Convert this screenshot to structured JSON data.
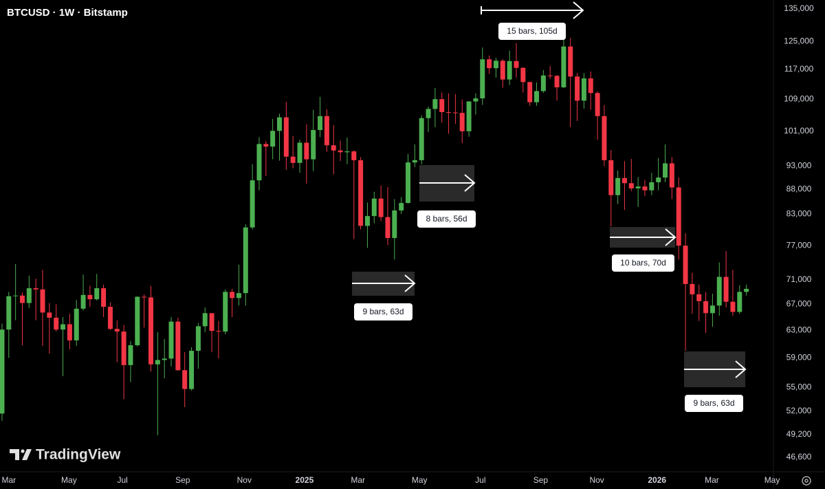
{
  "chart_data": {
    "type": "candlestick",
    "title": "BTCUSD · 1W · Bitstamp",
    "watermark": "TradingView",
    "up_color": "#4caf50",
    "down_color": "#f23645",
    "log_scale": true,
    "grid": false,
    "ylim": [
      45100,
      137900
    ],
    "yticks": [
      {
        "value": 135000,
        "label": "135,000"
      },
      {
        "value": 125000,
        "label": "125,000"
      },
      {
        "value": 117000,
        "label": "117,000"
      },
      {
        "value": 109000,
        "label": "109,000"
      },
      {
        "value": 101000,
        "label": "101,000"
      },
      {
        "value": 93000,
        "label": "93,000"
      },
      {
        "value": 88000,
        "label": "88,000"
      },
      {
        "value": 83000,
        "label": "83,000"
      },
      {
        "value": 77000,
        "label": "77,000"
      },
      {
        "value": 71000,
        "label": "71,000"
      },
      {
        "value": 67000,
        "label": "67,000"
      },
      {
        "value": 63000,
        "label": "63,000"
      },
      {
        "value": 59000,
        "label": "59,000"
      },
      {
        "value": 55000,
        "label": "55,000"
      },
      {
        "value": 52000,
        "label": "52,000"
      },
      {
        "value": 49200,
        "label": "49,200"
      },
      {
        "value": 46600,
        "label": "46,600"
      }
    ],
    "xlim": [
      -0.3,
      114.0
    ],
    "xticks": [
      {
        "value": 1.0,
        "label": "Mar"
      },
      {
        "value": 9.9,
        "label": "May"
      },
      {
        "value": 17.8,
        "label": "Jul"
      },
      {
        "value": 26.7,
        "label": "Sep"
      },
      {
        "value": 35.8,
        "label": "Nov"
      },
      {
        "value": 44.7,
        "label": "2025"
      },
      {
        "value": 52.6,
        "label": "Mar"
      },
      {
        "value": 61.7,
        "label": "May"
      },
      {
        "value": 70.7,
        "label": "Jul"
      },
      {
        "value": 79.6,
        "label": "Sep"
      },
      {
        "value": 87.9,
        "label": "Nov"
      },
      {
        "value": 96.8,
        "label": "2026"
      },
      {
        "value": 104.9,
        "label": "Mar"
      },
      {
        "value": 113.8,
        "label": "May"
      }
    ],
    "open": [
      51700,
      63100,
      68300,
      68400,
      67200,
      69600,
      69400,
      65700,
      64900,
      63100,
      63900,
      61500,
      66300,
      68500,
      67800,
      69600,
      66600,
      63200,
      62800,
      58000,
      60800,
      68200,
      68100,
      58100,
      58700,
      58900,
      64300,
      57300,
      54800,
      60000,
      63600,
      65600,
      62900,
      62800,
      69000,
      68000,
      68800,
      80400,
      89900,
      98000,
      97400,
      101100,
      104400,
      95100,
      93700,
      98300,
      94500,
      101300,
      104700,
      97700,
      96500,
      96100,
      96300,
      94300,
      80700,
      82600,
      86100,
      82400,
      78400,
      83700,
      85200,
      93800,
      94300,
      104200,
      106500,
      109000,
      105700,
      105600,
      105500,
      101000,
      108400,
      109200,
      119800,
      117300,
      119400,
      114200,
      119300,
      117400,
      113500,
      108200,
      111100,
      115300,
      115200,
      112100,
      123500,
      115000,
      108600,
      114500,
      110600,
      104700,
      94300,
      86800,
      90400,
      89300,
      88200,
      88600,
      87800,
      89500,
      90500,
      93600,
      88400,
      77000,
      70300,
      68600,
      67500,
      65600,
      66800,
      71500,
      67400,
      65800,
      69000
    ],
    "high": [
      64000,
      69000,
      73700,
      68900,
      71700,
      71200,
      72700,
      67200,
      67000,
      65000,
      65500,
      67700,
      71900,
      70000,
      72000,
      70200,
      67300,
      64500,
      63800,
      61400,
      68300,
      68600,
      70000,
      62700,
      61700,
      65000,
      64900,
      59800,
      60500,
      64100,
      66500,
      65600,
      64400,
      69400,
      69500,
      73600,
      81000,
      93400,
      99600,
      98700,
      104000,
      105300,
      108300,
      99900,
      99000,
      102700,
      106300,
      109600,
      106400,
      102500,
      98800,
      99500,
      96500,
      95000,
      85300,
      87500,
      88800,
      88500,
      86000,
      86400,
      95700,
      97900,
      104900,
      107100,
      111900,
      110700,
      110500,
      110300,
      108900,
      108500,
      110500,
      123200,
      120900,
      120200,
      119800,
      122300,
      124500,
      117600,
      113600,
      113400,
      116800,
      117900,
      115400,
      126200,
      126000,
      116000,
      116000,
      116400,
      111000,
      107500,
      96600,
      92000,
      94100,
      94600,
      90600,
      90000,
      91500,
      94800,
      97900,
      95000,
      90500,
      79300,
      72200,
      70200,
      69000,
      68700,
      74000,
      76000,
      72700,
      70100,
      70200
    ],
    "low": [
      50800,
      59000,
      64500,
      60800,
      66400,
      64500,
      60700,
      59600,
      62800,
      56500,
      60200,
      60700,
      66000,
      66600,
      67600,
      65000,
      63000,
      58400,
      53500,
      55700,
      60600,
      63400,
      57100,
      49100,
      56200,
      57800,
      57200,
      52500,
      54600,
      57500,
      62700,
      59800,
      58900,
      62400,
      65000,
      66800,
      66800,
      80000,
      87800,
      90800,
      94500,
      94200,
      92200,
      92500,
      91500,
      89200,
      91900,
      99600,
      96200,
      91200,
      94100,
      93400,
      78200,
      80000,
      76600,
      81200,
      81600,
      77100,
      74500,
      83000,
      85100,
      92800,
      93400,
      100800,
      102000,
      103100,
      100400,
      102800,
      98200,
      99700,
      105100,
      107500,
      115700,
      114700,
      112000,
      112700,
      114700,
      110700,
      107300,
      107300,
      110600,
      114400,
      108600,
      111900,
      102000,
      103500,
      106600,
      106300,
      99000,
      93000,
      80600,
      85000,
      83800,
      87600,
      84400,
      86600,
      86800,
      87800,
      89500,
      86000,
      74500,
      60000,
      65500,
      64400,
      62600,
      63500,
      65200,
      66500,
      65200,
      65500,
      68400
    ],
    "close": [
      63100,
      68300,
      68400,
      67200,
      69600,
      69400,
      65700,
      64900,
      63100,
      63900,
      61500,
      66300,
      68500,
      67800,
      69600,
      66600,
      63200,
      62800,
      58000,
      60800,
      68200,
      68100,
      58100,
      58700,
      58900,
      64300,
      57300,
      54800,
      60000,
      63600,
      65600,
      62900,
      62800,
      69000,
      68000,
      68800,
      80400,
      89900,
      98000,
      97400,
      101100,
      104400,
      95100,
      93700,
      98300,
      94500,
      101300,
      104700,
      97700,
      96500,
      96100,
      96300,
      94300,
      80700,
      82600,
      86100,
      82400,
      78400,
      83700,
      85200,
      93800,
      94300,
      104200,
      106500,
      109000,
      105700,
      105600,
      105500,
      101000,
      108400,
      109200,
      119800,
      117300,
      119400,
      114200,
      119300,
      117400,
      113500,
      108200,
      111100,
      115300,
      115200,
      112100,
      123500,
      115000,
      108600,
      114500,
      110600,
      104700,
      94300,
      86800,
      90400,
      89300,
      88200,
      88600,
      87800,
      89500,
      90500,
      93600,
      88400,
      77000,
      70300,
      68600,
      67500,
      65600,
      66800,
      71500,
      67400,
      65800,
      69000,
      69500
    ],
    "annotations": [
      "15 bars, 105d",
      "8 bars, 56d",
      "9 bars, 63d",
      "10 bars, 70d",
      "9 bars, 63d"
    ]
  }
}
